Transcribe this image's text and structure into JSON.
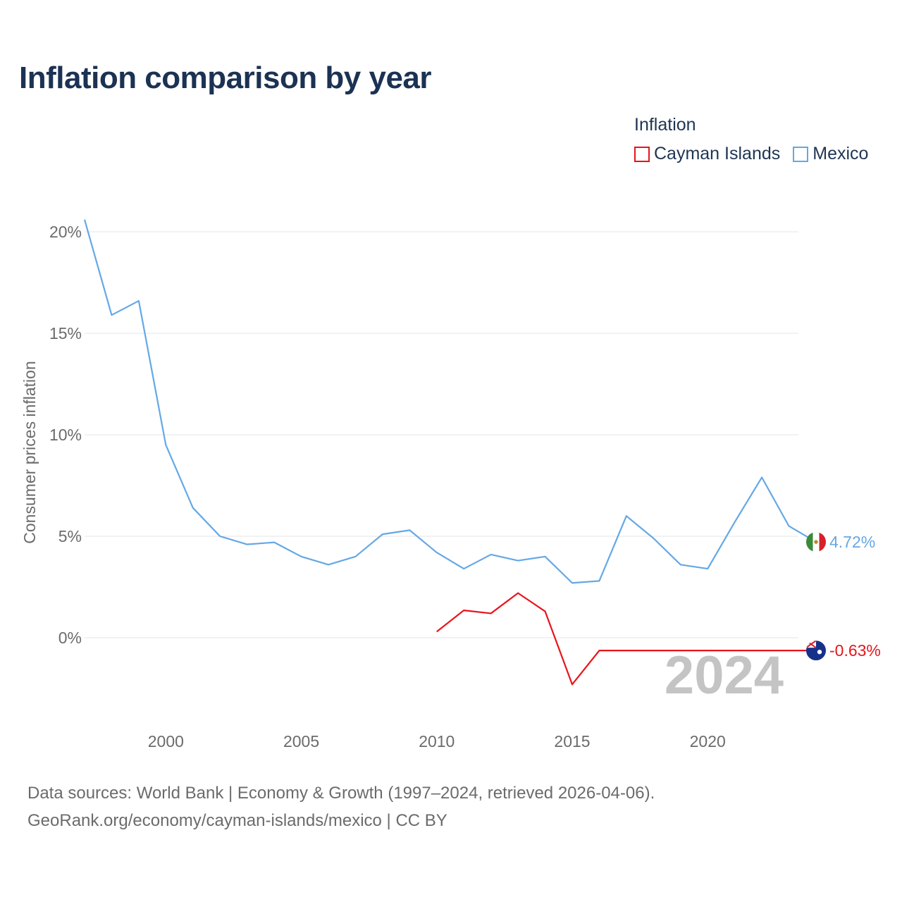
{
  "header": {
    "title": "Inflation comparison by year"
  },
  "legend": {
    "title": "Inflation",
    "items": [
      {
        "label": "Cayman Islands",
        "color": "#e8141b"
      },
      {
        "label": "Mexico",
        "color": "#64a8e6"
      }
    ]
  },
  "footer": {
    "source_line1": "Data sources: World Bank | Economy & Growth (1997–2024, retrieved 2026-04-06).",
    "source_line2": "GeoRank.org/economy/cayman-islands/mexico | CC BY"
  },
  "chart_data": {
    "type": "line",
    "title": "Inflation comparison by year",
    "xlabel": "",
    "ylabel": "Consumer prices inflation",
    "xlim": [
      1997,
      2024
    ],
    "ylim": [
      -3.5,
      21
    ],
    "x_ticks": [
      2000,
      2005,
      2010,
      2015,
      2020
    ],
    "x_tick_labels": [
      "2000",
      "2005",
      "2010",
      "2015",
      "2020"
    ],
    "y_ticks": [
      0,
      5,
      10,
      15,
      20
    ],
    "y_tick_labels": [
      "0%",
      "5%",
      "10%",
      "15%",
      "20%"
    ],
    "grid": true,
    "current_year_label": "2024",
    "series": [
      {
        "name": "Mexico",
        "color": "#64a8e6",
        "end_label": "4.72%",
        "flag_icon": "mexico-flag-icon",
        "x": [
          1997,
          1998,
          1999,
          2000,
          2001,
          2002,
          2003,
          2004,
          2005,
          2006,
          2007,
          2008,
          2009,
          2010,
          2011,
          2012,
          2013,
          2014,
          2015,
          2016,
          2017,
          2018,
          2019,
          2020,
          2021,
          2022,
          2023,
          2024
        ],
        "values": [
          20.6,
          15.9,
          16.6,
          9.5,
          6.4,
          5.0,
          4.6,
          4.7,
          4.0,
          3.6,
          4.0,
          5.1,
          5.3,
          4.2,
          3.4,
          4.1,
          3.8,
          4.0,
          2.7,
          2.8,
          6.0,
          4.9,
          3.6,
          3.4,
          5.7,
          7.9,
          5.5,
          4.72
        ]
      },
      {
        "name": "Cayman Islands",
        "color": "#e8141b",
        "end_label": "-0.63%",
        "flag_icon": "cayman-islands-flag-icon",
        "x": [
          2010,
          2011,
          2012,
          2013,
          2014,
          2015,
          2016,
          2017,
          2018,
          2019,
          2020,
          2021,
          2022,
          2023,
          2024
        ],
        "values": [
          0.3,
          1.35,
          1.2,
          2.2,
          1.3,
          -2.3,
          -0.63,
          -0.63,
          -0.63,
          -0.63,
          -0.63,
          -0.63,
          -0.63,
          -0.63,
          -0.63
        ]
      }
    ]
  }
}
